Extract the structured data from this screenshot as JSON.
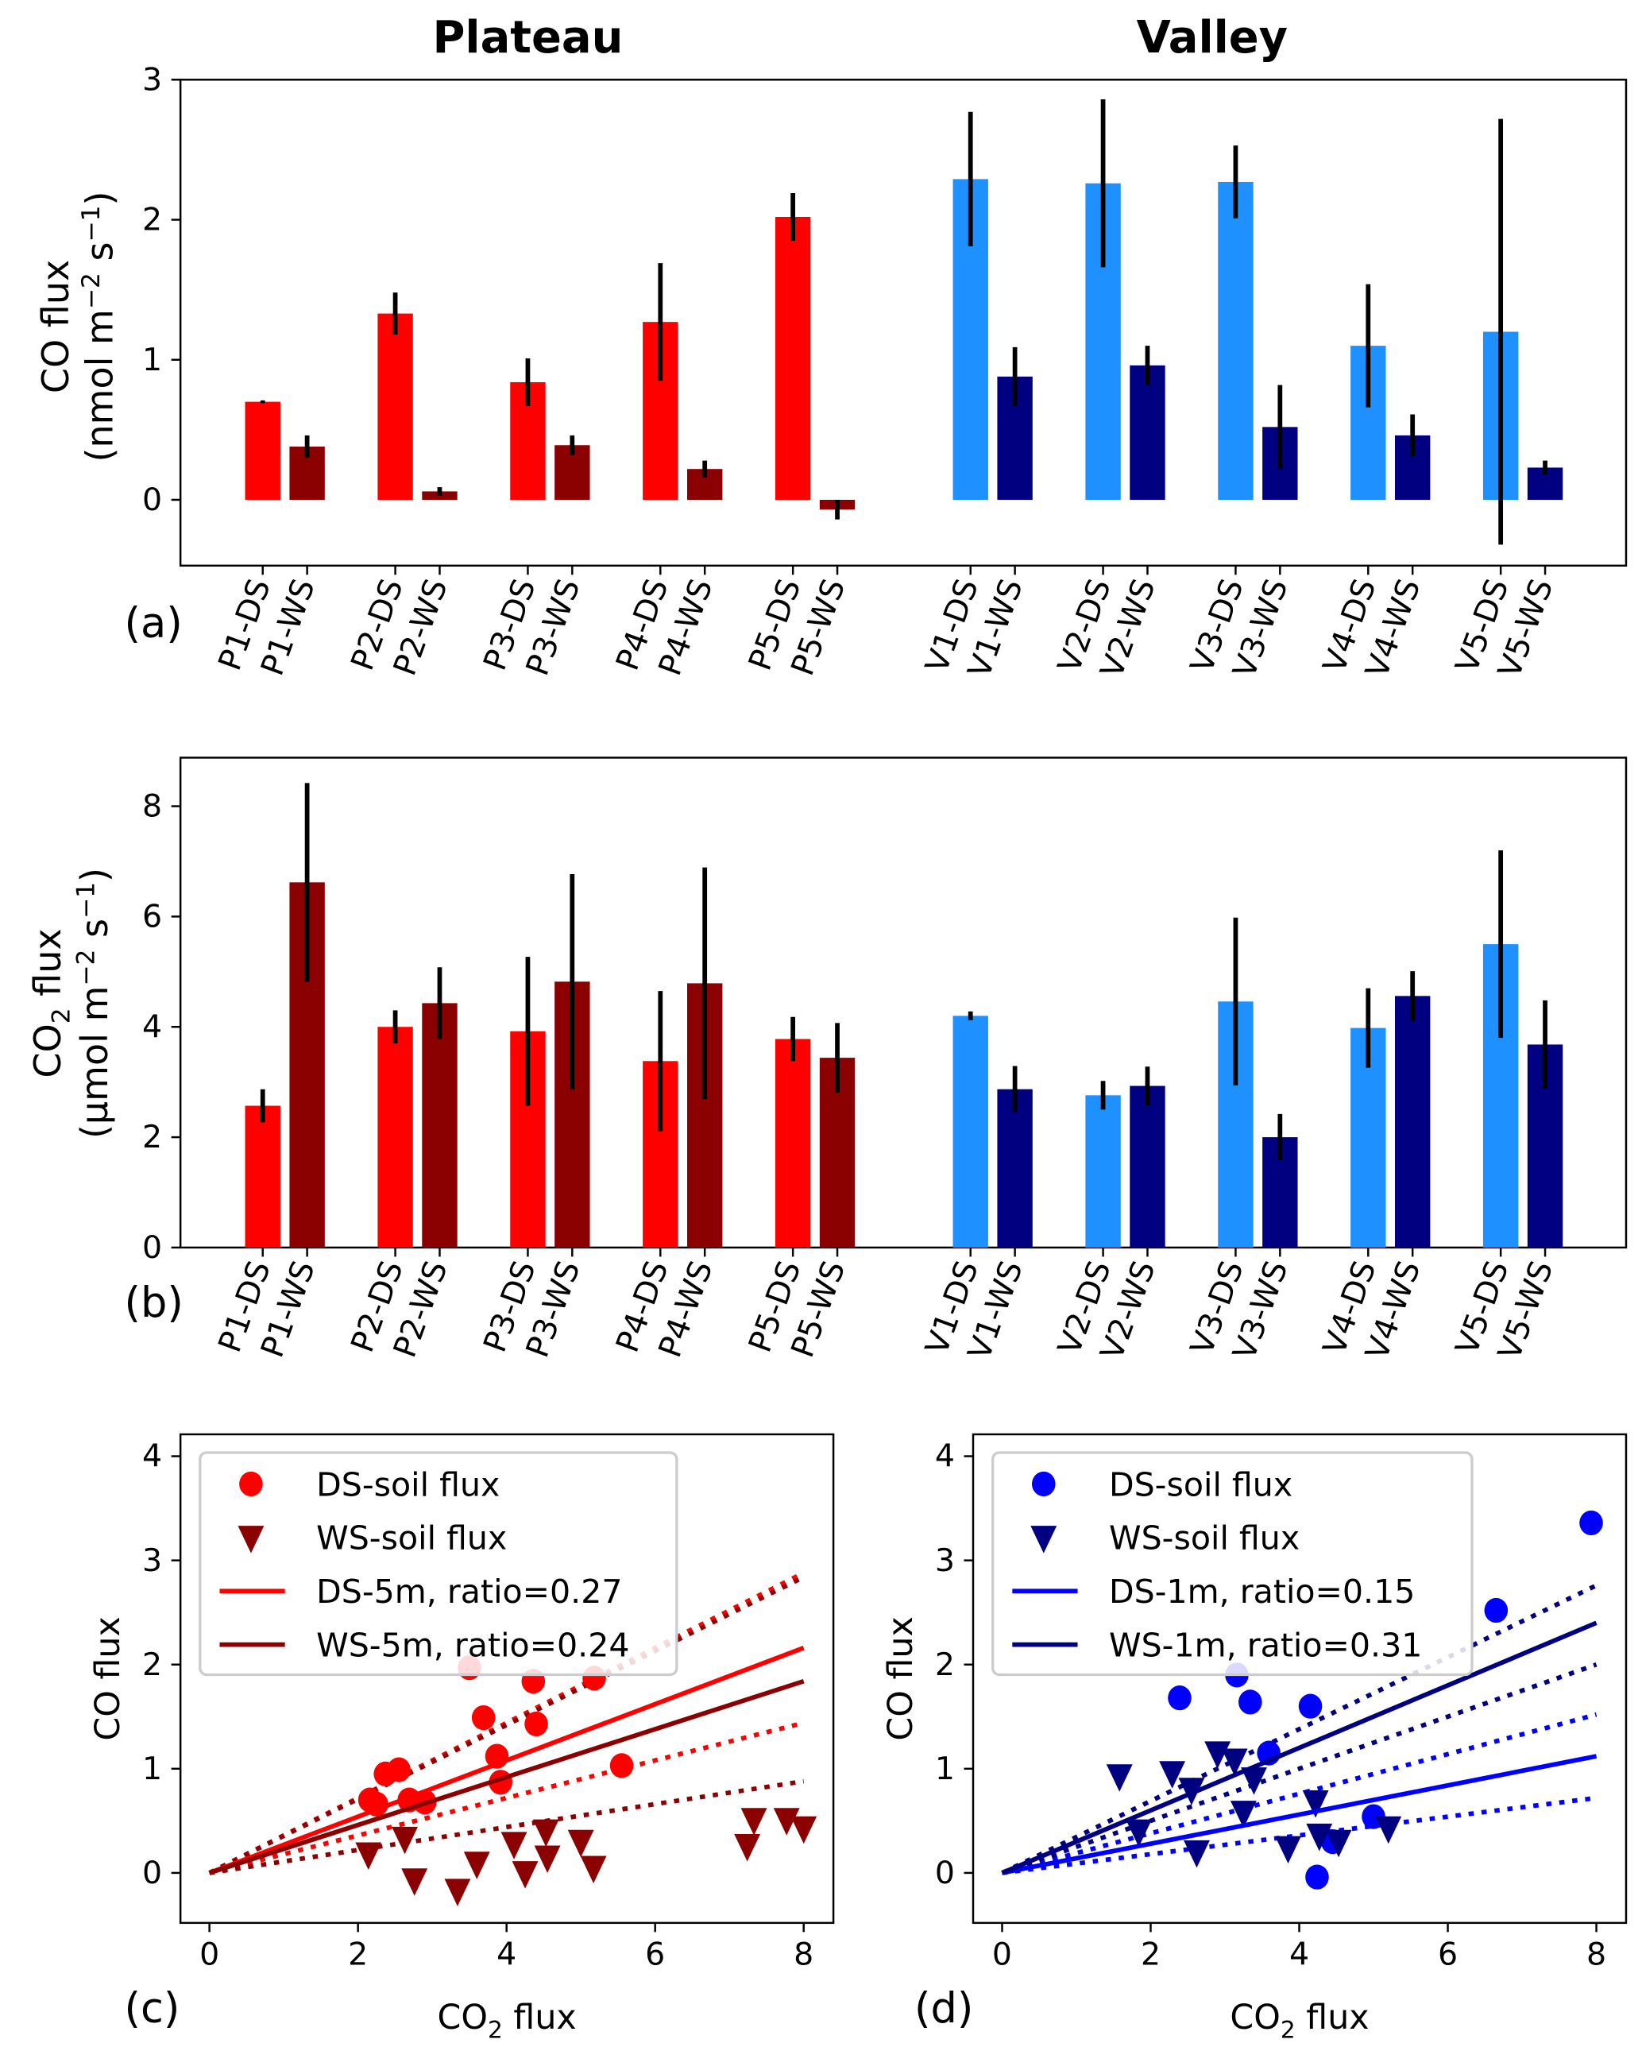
{
  "titles": {
    "left": "Plateau",
    "right": "Valley"
  },
  "panel_labels": [
    "(a)",
    "(b)",
    "(c)",
    "(d)"
  ],
  "colors": {
    "plateau_ds": "#ff0000",
    "plateau_ws": "#8b0000",
    "valley_ds_bar": "#1e90ff",
    "valley_ws_bar": "#000080",
    "valley_ds_scatter": "#0000ff",
    "valley_ws_scatter": "#000080"
  },
  "chart_data": [
    {
      "id": "a",
      "type": "bar",
      "ylabel_line1": "CO flux",
      "ylabel_line2": "(nmol m",
      "ylabel_unit_tail": " s",
      "ylim": [
        -0.47,
        3.0
      ],
      "yticks": [
        0,
        1,
        2,
        3
      ],
      "categories": [
        "P1-DS",
        "P1-WS",
        "P2-DS",
        "P2-WS",
        "P3-DS",
        "P3-WS",
        "P4-DS",
        "P4-WS",
        "P5-DS",
        "P5-WS",
        "V1-DS",
        "V1-WS",
        "V2-DS",
        "V2-WS",
        "V3-DS",
        "V3-WS",
        "V4-DS",
        "V4-WS",
        "V5-DS",
        "V5-WS"
      ],
      "values": [
        0.7,
        0.38,
        1.33,
        0.06,
        0.84,
        0.39,
        1.27,
        0.22,
        2.02,
        -0.07,
        2.29,
        0.88,
        2.26,
        0.96,
        2.27,
        0.52,
        1.1,
        0.46,
        1.2,
        0.23
      ],
      "errors": [
        0.01,
        0.08,
        0.15,
        0.03,
        0.17,
        0.07,
        0.42,
        0.06,
        0.17,
        0.07,
        0.48,
        0.21,
        0.6,
        0.14,
        0.26,
        0.3,
        0.44,
        0.15,
        1.52,
        0.05
      ]
    },
    {
      "id": "b",
      "type": "bar",
      "ylabel_line1": "CO",
      "ylabel_sub": "2",
      "ylabel_line1_tail": " flux",
      "ylabel_line2": "(µmol m",
      "ylabel_unit_tail": " s",
      "ylim": [
        0,
        8.88
      ],
      "yticks": [
        0,
        2,
        4,
        6,
        8
      ],
      "categories": [
        "P1-DS",
        "P1-WS",
        "P2-DS",
        "P2-WS",
        "P3-DS",
        "P3-WS",
        "P4-DS",
        "P4-WS",
        "P5-DS",
        "P5-WS",
        "V1-DS",
        "V1-WS",
        "V2-DS",
        "V2-WS",
        "V3-DS",
        "V3-WS",
        "V4-DS",
        "V4-WS",
        "V5-DS",
        "V5-WS"
      ],
      "values": [
        2.57,
        6.62,
        4.0,
        4.43,
        3.92,
        4.82,
        3.38,
        4.79,
        3.78,
        3.44,
        4.2,
        2.87,
        2.76,
        2.93,
        4.46,
        2.0,
        3.98,
        4.56,
        5.5,
        3.68
      ],
      "errors": [
        0.3,
        1.8,
        0.3,
        0.65,
        1.35,
        1.95,
        1.27,
        2.1,
        0.4,
        0.63,
        0.08,
        0.42,
        0.26,
        0.35,
        1.52,
        0.42,
        0.72,
        0.45,
        1.7,
        0.8
      ]
    },
    {
      "id": "c",
      "type": "scatter",
      "xlabel": "CO",
      "xlabel_sub": "2",
      "xlabel_tail": " flux",
      "ylabel": "CO flux",
      "xlim": [
        -0.39,
        8.4
      ],
      "ylim": [
        -0.48,
        4.21
      ],
      "xticks": [
        0,
        2,
        4,
        6,
        8
      ],
      "yticks": [
        0,
        1,
        2,
        3,
        4
      ],
      "series": [
        {
          "name": "DS-soil flux",
          "marker": "circle",
          "color": "#ff0000",
          "points": [
            [
              2.16,
              0.7
            ],
            [
              2.25,
              0.66
            ],
            [
              2.37,
              0.95
            ],
            [
              2.55,
              0.99
            ],
            [
              2.69,
              0.7
            ],
            [
              2.9,
              0.68
            ],
            [
              3.5,
              1.97
            ],
            [
              3.69,
              1.49
            ],
            [
              3.87,
              1.12
            ],
            [
              3.92,
              0.87
            ],
            [
              4.36,
              1.84
            ],
            [
              4.4,
              1.43
            ],
            [
              5.18,
              1.87
            ],
            [
              5.55,
              1.03
            ]
          ]
        },
        {
          "name": "WS-soil flux",
          "marker": "triangle-down",
          "color": "#8b0000",
          "points": [
            [
              2.14,
              0.18
            ],
            [
              2.63,
              0.33
            ],
            [
              2.76,
              -0.07
            ],
            [
              3.34,
              -0.17
            ],
            [
              3.6,
              0.09
            ],
            [
              4.1,
              0.28
            ],
            [
              4.25,
              0.0
            ],
            [
              4.53,
              0.4
            ],
            [
              4.55,
              0.15
            ],
            [
              5.0,
              0.3
            ],
            [
              5.17,
              0.05
            ],
            [
              7.24,
              0.26
            ],
            [
              7.33,
              0.51
            ],
            [
              7.77,
              0.51
            ],
            [
              8.0,
              0.43
            ]
          ]
        }
      ],
      "lines": [
        {
          "name": "DS-5m, ratio=0.27",
          "slope": 0.27,
          "color": "#ff0000",
          "bounds": [
            0.36,
            0.18
          ]
        },
        {
          "name": "WS-5m, ratio=0.24",
          "slope": 0.23,
          "color": "#8b0000",
          "bounds": [
            0.355,
            0.11
          ]
        }
      ],
      "legend": "upper-left"
    },
    {
      "id": "d",
      "type": "scatter",
      "xlabel": "CO",
      "xlabel_sub": "2",
      "xlabel_tail": " flux",
      "ylabel": "CO flux",
      "xlim": [
        -0.39,
        8.4
      ],
      "ylim": [
        -0.48,
        4.21
      ],
      "xticks": [
        0,
        2,
        4,
        6,
        8
      ],
      "yticks": [
        0,
        1,
        2,
        3,
        4
      ],
      "series": [
        {
          "name": "DS-soil flux",
          "marker": "circle",
          "color": "#0000ff",
          "points": [
            [
              7.93,
              3.36
            ],
            [
              6.65,
              2.52
            ],
            [
              2.39,
              1.68
            ],
            [
              3.16,
              1.9
            ],
            [
              3.34,
              1.64
            ],
            [
              4.15,
              1.6
            ],
            [
              3.59,
              1.15
            ],
            [
              5.0,
              0.54
            ],
            [
              4.24,
              -0.04
            ],
            [
              4.45,
              0.3
            ]
          ]
        },
        {
          "name": "WS-soil flux",
          "marker": "triangle-down",
          "color": "#000080",
          "points": [
            [
              1.58,
              0.93
            ],
            [
              1.84,
              0.4
            ],
            [
              2.29,
              0.96
            ],
            [
              2.55,
              0.8
            ],
            [
              2.62,
              0.2
            ],
            [
              2.9,
              1.15
            ],
            [
              3.13,
              1.08
            ],
            [
              3.25,
              0.58
            ],
            [
              3.39,
              0.9
            ],
            [
              3.85,
              0.24
            ],
            [
              4.22,
              0.68
            ],
            [
              4.27,
              0.36
            ],
            [
              4.53,
              0.3
            ],
            [
              5.2,
              0.43
            ]
          ]
        }
      ],
      "lines": [
        {
          "name": "DS-1m, ratio=0.15",
          "slope": 0.14,
          "color": "#0000ff",
          "bounds": [
            0.19,
            0.09
          ]
        },
        {
          "name": "WS-1m, ratio=0.31",
          "slope": 0.3,
          "color": "#000080",
          "bounds": [
            0.345,
            0.25
          ]
        }
      ],
      "legend": "upper-left"
    }
  ]
}
